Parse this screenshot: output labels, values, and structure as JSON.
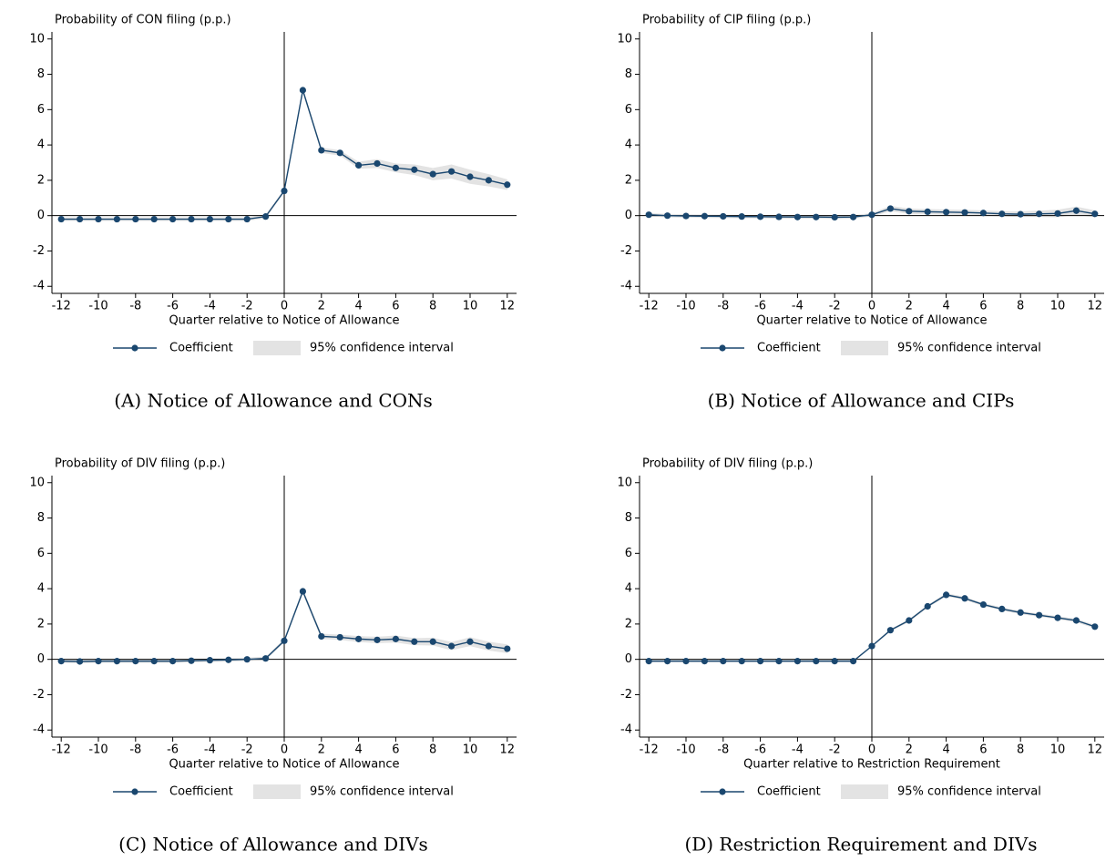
{
  "chart_data": [
    {
      "type": "line",
      "caption": "(A) Notice of Allowance and CONs",
      "ylabel": "Probability of CON filing (p.p.)",
      "xlabel": "Quarter relative to Notice of Allowance",
      "x": [
        -12,
        -11,
        -10,
        -9,
        -8,
        -7,
        -6,
        -5,
        -4,
        -3,
        -2,
        -1,
        0,
        1,
        2,
        3,
        4,
        5,
        6,
        7,
        8,
        9,
        10,
        11,
        12
      ],
      "series": [
        {
          "name": "Coefficient",
          "color": "#1a476f",
          "values": [
            -0.2,
            -0.2,
            -0.2,
            -0.2,
            -0.2,
            -0.2,
            -0.2,
            -0.2,
            -0.2,
            -0.2,
            -0.2,
            -0.05,
            1.4,
            7.1,
            3.7,
            3.55,
            2.85,
            2.95,
            2.7,
            2.6,
            2.35,
            2.5,
            2.2,
            2.0,
            1.75
          ]
        }
      ],
      "ci": {
        "name": "95% confidence interval",
        "color": "#e3e3e3",
        "lower": [
          -0.3,
          -0.3,
          -0.3,
          -0.3,
          -0.3,
          -0.3,
          -0.3,
          -0.3,
          -0.3,
          -0.3,
          -0.3,
          -0.15,
          1.3,
          6.95,
          3.55,
          3.4,
          2.65,
          2.7,
          2.45,
          2.3,
          2.0,
          2.1,
          1.8,
          1.65,
          1.45
        ],
        "upper": [
          -0.1,
          -0.1,
          -0.1,
          -0.1,
          -0.1,
          -0.1,
          -0.1,
          -0.1,
          -0.1,
          -0.1,
          -0.1,
          0.05,
          1.5,
          7.25,
          3.85,
          3.7,
          3.05,
          3.2,
          2.95,
          2.9,
          2.7,
          2.9,
          2.6,
          2.35,
          2.05
        ]
      },
      "xlim": [
        -12.5,
        12.5
      ],
      "ylim": [
        -4.4,
        10.4
      ],
      "xticks": [
        -12,
        -10,
        -8,
        -6,
        -4,
        -2,
        0,
        2,
        4,
        6,
        8,
        10,
        12
      ],
      "yticks": [
        -4,
        -2,
        0,
        2,
        4,
        6,
        8,
        10
      ],
      "reference_lines": {
        "x": 0,
        "y": 0
      },
      "legend": "bottom"
    },
    {
      "type": "line",
      "caption": "(B) Notice of Allowance and CIPs",
      "ylabel": "Probability of CIP filing (p.p.)",
      "xlabel": "Quarter relative to Notice of Allowance",
      "x": [
        -12,
        -11,
        -10,
        -9,
        -8,
        -7,
        -6,
        -5,
        -4,
        -3,
        -2,
        -1,
        0,
        1,
        2,
        3,
        4,
        5,
        6,
        7,
        8,
        9,
        10,
        11,
        12
      ],
      "series": [
        {
          "name": "Coefficient",
          "color": "#1a476f",
          "values": [
            0.05,
            0,
            -0.02,
            -0.03,
            -0.04,
            -0.05,
            -0.06,
            -0.07,
            -0.08,
            -0.08,
            -0.09,
            -0.08,
            0.05,
            0.4,
            0.25,
            0.22,
            0.2,
            0.18,
            0.15,
            0.1,
            0.08,
            0.1,
            0.12,
            0.28,
            0.1
          ]
        }
      ],
      "ci": {
        "name": "95% confidence interval",
        "color": "#e3e3e3",
        "lower": [
          -0.05,
          -0.1,
          -0.12,
          -0.13,
          -0.14,
          -0.15,
          -0.16,
          -0.17,
          -0.18,
          -0.18,
          -0.19,
          -0.18,
          -0.05,
          0.25,
          0.1,
          0.07,
          0.05,
          0.03,
          0,
          -0.05,
          -0.08,
          -0.08,
          -0.1,
          0.05,
          -0.1
        ],
        "upper": [
          0.15,
          0.1,
          0.08,
          0.07,
          0.06,
          0.05,
          0.04,
          0.03,
          0.02,
          0.02,
          0.01,
          0.02,
          0.15,
          0.55,
          0.4,
          0.37,
          0.35,
          0.33,
          0.3,
          0.25,
          0.24,
          0.28,
          0.34,
          0.51,
          0.3
        ]
      },
      "xlim": [
        -12.5,
        12.5
      ],
      "ylim": [
        -4.4,
        10.4
      ],
      "xticks": [
        -12,
        -10,
        -8,
        -6,
        -4,
        -2,
        0,
        2,
        4,
        6,
        8,
        10,
        12
      ],
      "yticks": [
        -4,
        -2,
        0,
        2,
        4,
        6,
        8,
        10
      ],
      "reference_lines": {
        "x": 0,
        "y": 0
      },
      "legend": "bottom"
    },
    {
      "type": "line",
      "caption": "(C) Notice of Allowance and DIVs",
      "ylabel": "Probability of DIV filing (p.p.)",
      "xlabel": "Quarter relative to Notice of Allowance",
      "x": [
        -12,
        -11,
        -10,
        -9,
        -8,
        -7,
        -6,
        -5,
        -4,
        -3,
        -2,
        -1,
        0,
        1,
        2,
        3,
        4,
        5,
        6,
        7,
        8,
        9,
        10,
        11,
        12
      ],
      "series": [
        {
          "name": "Coefficient",
          "color": "#1a476f",
          "values": [
            -0.1,
            -0.12,
            -0.1,
            -0.1,
            -0.1,
            -0.1,
            -0.1,
            -0.08,
            -0.05,
            -0.03,
            0,
            0.05,
            1.05,
            3.85,
            1.3,
            1.25,
            1.15,
            1.1,
            1.15,
            1.0,
            1.0,
            0.75,
            1.0,
            0.75,
            0.6
          ]
        }
      ],
      "ci": {
        "name": "95% confidence interval",
        "color": "#e3e3e3",
        "lower": [
          -0.2,
          -0.22,
          -0.2,
          -0.2,
          -0.2,
          -0.2,
          -0.2,
          -0.18,
          -0.15,
          -0.13,
          -0.1,
          -0.05,
          0.95,
          3.7,
          1.15,
          1.1,
          0.98,
          0.92,
          0.95,
          0.8,
          0.78,
          0.52,
          0.75,
          0.5,
          0.35
        ],
        "upper": [
          0,
          -0.02,
          0,
          0,
          0,
          0,
          0,
          0.02,
          0.05,
          0.07,
          0.1,
          0.15,
          1.15,
          4.0,
          1.45,
          1.4,
          1.32,
          1.28,
          1.35,
          1.2,
          1.22,
          0.98,
          1.25,
          1.0,
          0.85
        ]
      },
      "xlim": [
        -12.5,
        12.5
      ],
      "ylim": [
        -4.4,
        10.4
      ],
      "xticks": [
        -12,
        -10,
        -8,
        -6,
        -4,
        -2,
        0,
        2,
        4,
        6,
        8,
        10,
        12
      ],
      "yticks": [
        -4,
        -2,
        0,
        2,
        4,
        6,
        8,
        10
      ],
      "reference_lines": {
        "x": 0,
        "y": 0
      },
      "legend": "bottom"
    },
    {
      "type": "line",
      "caption": "(D) Restriction Requirement and DIVs",
      "ylabel": "Probability of DIV filing (p.p.)",
      "xlabel": "Quarter relative to Restriction Requirement",
      "x": [
        -12,
        -11,
        -10,
        -9,
        -8,
        -7,
        -6,
        -5,
        -4,
        -3,
        -2,
        -1,
        0,
        1,
        2,
        3,
        4,
        5,
        6,
        7,
        8,
        9,
        10,
        11,
        12
      ],
      "series": [
        {
          "name": "Coefficient",
          "color": "#1a476f",
          "values": [
            -0.1,
            -0.1,
            -0.1,
            -0.1,
            -0.1,
            -0.1,
            -0.1,
            -0.1,
            -0.1,
            -0.1,
            -0.1,
            -0.1,
            0.75,
            1.65,
            2.2,
            3.0,
            3.65,
            3.45,
            3.1,
            2.85,
            2.65,
            2.5,
            2.35,
            2.2,
            1.85
          ]
        }
      ],
      "ci": {
        "name": "95% confidence interval",
        "color": "#e3e3e3",
        "lower": [
          -0.15,
          -0.15,
          -0.15,
          -0.15,
          -0.15,
          -0.15,
          -0.15,
          -0.15,
          -0.15,
          -0.15,
          -0.15,
          -0.15,
          0.7,
          1.58,
          2.12,
          2.92,
          3.56,
          3.36,
          3.01,
          2.76,
          2.56,
          2.41,
          2.26,
          2.1,
          1.75
        ],
        "upper": [
          -0.05,
          -0.05,
          -0.05,
          -0.05,
          -0.05,
          -0.05,
          -0.05,
          -0.05,
          -0.05,
          -0.05,
          -0.05,
          -0.05,
          0.8,
          1.72,
          2.28,
          3.08,
          3.74,
          3.54,
          3.19,
          2.94,
          2.74,
          2.59,
          2.44,
          2.3,
          1.95
        ]
      },
      "xlim": [
        -12.5,
        12.5
      ],
      "ylim": [
        -4.4,
        10.4
      ],
      "xticks": [
        -12,
        -10,
        -8,
        -6,
        -4,
        -2,
        0,
        2,
        4,
        6,
        8,
        10,
        12
      ],
      "yticks": [
        -4,
        -2,
        0,
        2,
        4,
        6,
        8,
        10
      ],
      "reference_lines": {
        "x": 0,
        "y": 0
      },
      "legend": "bottom"
    }
  ]
}
